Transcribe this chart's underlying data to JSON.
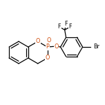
{
  "bg_color": "#ffffff",
  "bond_color": "#000000",
  "atom_colors": {
    "O": "#cc4400",
    "P": "#cc4400",
    "F": "#000000",
    "Br": "#000000"
  },
  "fig_size": [
    1.52,
    1.52
  ],
  "dpi": 100
}
